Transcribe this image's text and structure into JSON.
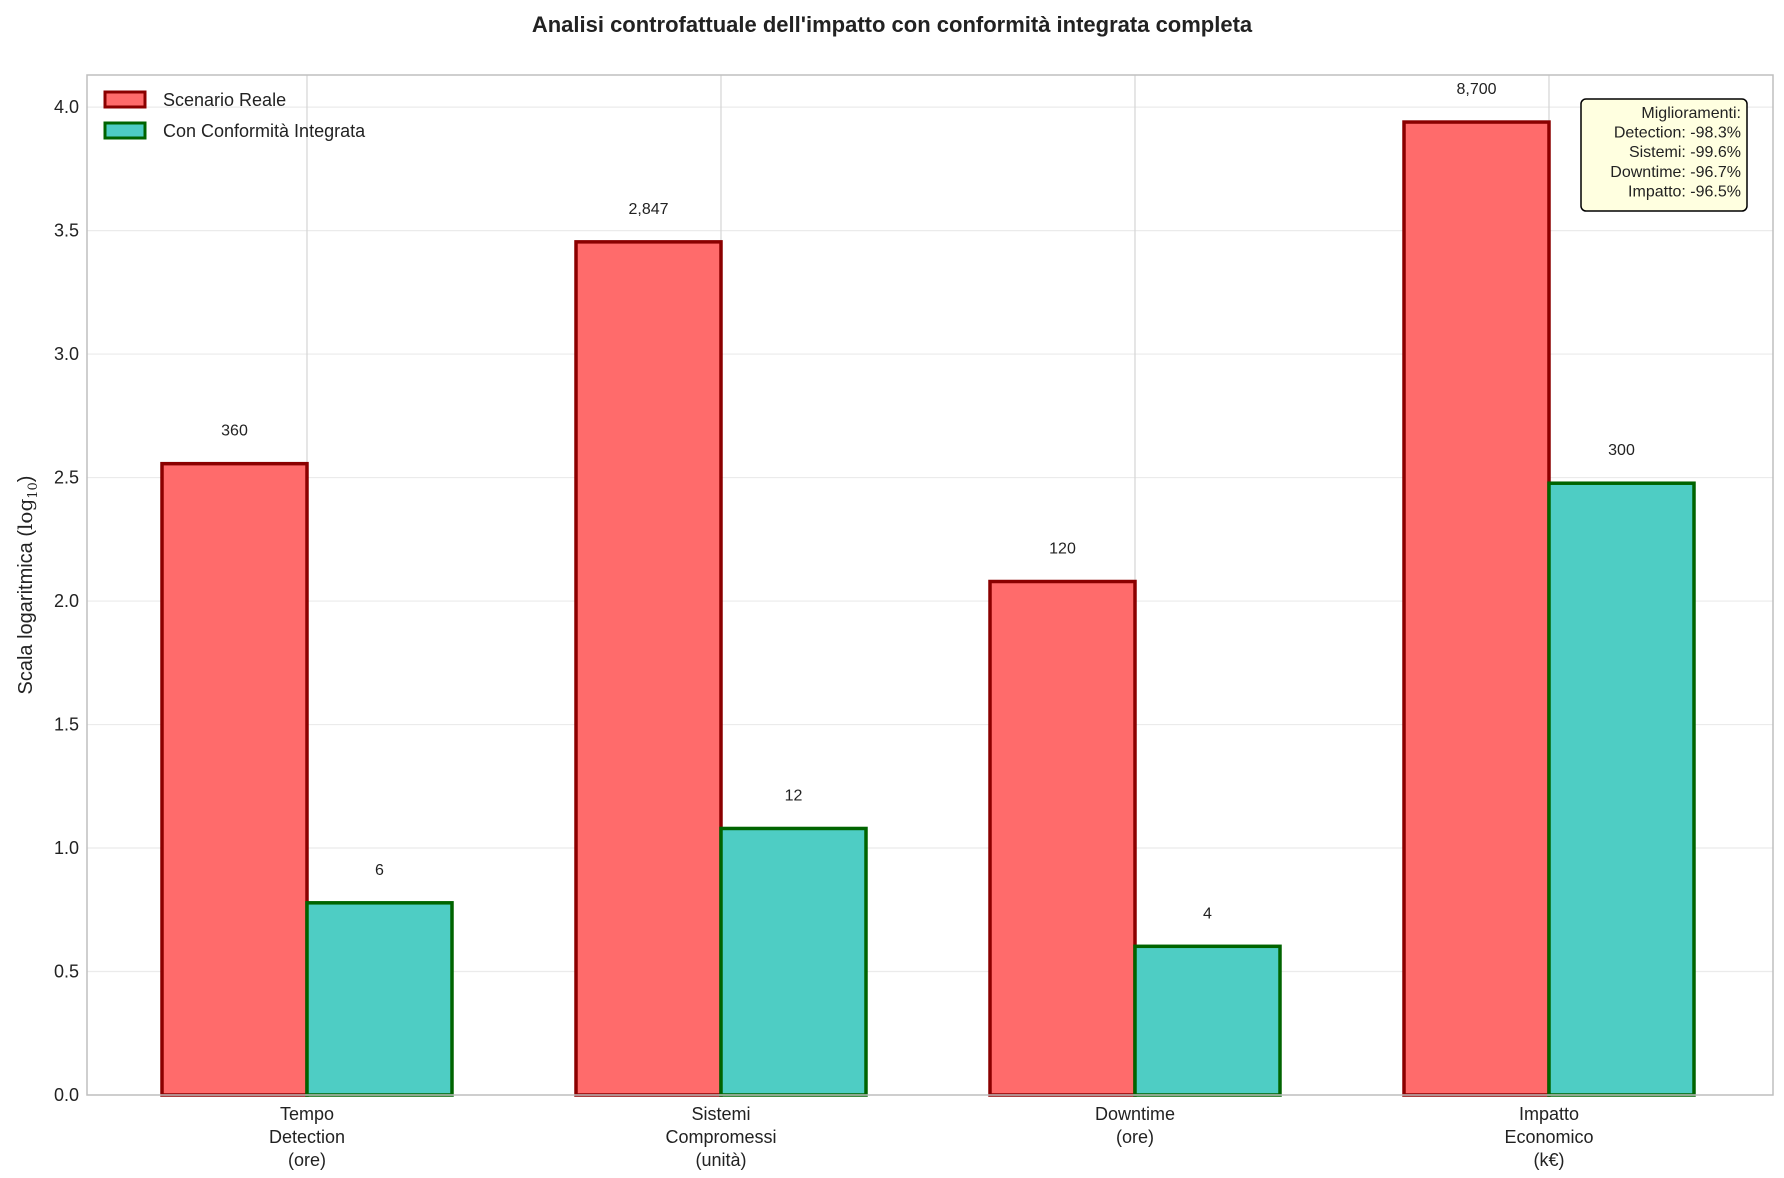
{
  "chart_data": {
    "type": "bar",
    "title": "Analisi controfattuale dell'impatto con conformità integrata completa",
    "ylabel_text": "Scala logaritmica (",
    "ylabel_log": "log",
    "ylabel_sub": "10",
    "ylabel_close": ")",
    "ylim": [
      0,
      4.13
    ],
    "yticks": [
      "0.0",
      "0.5",
      "1.0",
      "1.5",
      "2.0",
      "2.5",
      "3.0",
      "3.5",
      "4.0"
    ],
    "categories": [
      [
        "Tempo",
        "Detection",
        "(ore)"
      ],
      [
        "Sistemi",
        "Compromessi",
        "(unità)"
      ],
      [
        "Downtime",
        "(ore)"
      ],
      [
        "Impatto",
        "Economico",
        "(k€)"
      ]
    ],
    "series": [
      {
        "name": "Scenario Reale",
        "raw": [
          360,
          2847,
          120,
          8700
        ],
        "labels": [
          "360",
          "2,847",
          "120",
          "8,700"
        ],
        "fill": "#ff6b6b",
        "edge": "#8b0000"
      },
      {
        "name": "Con Conformità Integrata",
        "raw": [
          6,
          12,
          4,
          300
        ],
        "labels": [
          "6",
          "12",
          "4",
          "300"
        ],
        "fill": "#4ecdc4",
        "edge": "#006400"
      }
    ],
    "legend_position": "upper left",
    "grid": true,
    "annotation": {
      "lines": [
        "Miglioramenti:",
        "Detection: -98.3%",
        "Sistemi: -99.6%",
        "Downtime: -96.7%",
        "Impatto: -96.5%"
      ],
      "fill": "#ffffe0",
      "position": "upper right"
    }
  }
}
